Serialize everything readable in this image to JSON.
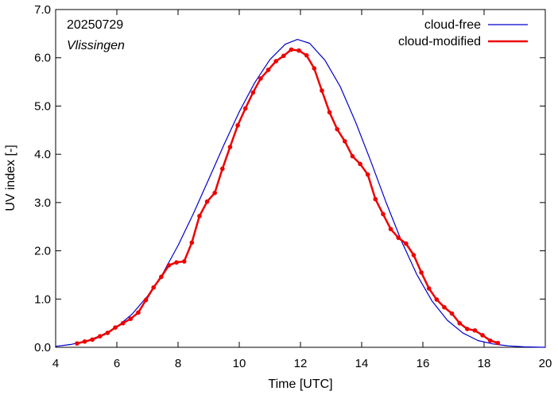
{
  "chart_data": {
    "type": "line",
    "annotations": {
      "date": "20250729",
      "station": "Vlissingen"
    },
    "xlabel": "Time  [UTC]",
    "ylabel": "UV index  [-]",
    "xlim": [
      4,
      20
    ],
    "ylim": [
      0,
      7
    ],
    "x_ticks": [
      4,
      6,
      8,
      10,
      12,
      14,
      16,
      18,
      20
    ],
    "x_tick_labels": [
      "4",
      "6",
      "8",
      "10",
      "12",
      "14",
      "16",
      "18",
      "20"
    ],
    "y_ticks": [
      0,
      1,
      2,
      3,
      4,
      5,
      6,
      7
    ],
    "y_tick_labels": [
      "0.0",
      "1.0",
      "2.0",
      "3.0",
      "4.0",
      "5.0",
      "6.0",
      "7.0"
    ],
    "legend_placement": "top-right",
    "grid": false,
    "series": [
      {
        "name": "cloud-free",
        "color": "#0000cc",
        "style": "line",
        "x": [
          4.0,
          4.5,
          5.0,
          5.5,
          6.0,
          6.5,
          7.0,
          7.5,
          8.0,
          8.5,
          9.0,
          9.5,
          10.0,
          10.5,
          11.0,
          11.5,
          11.9,
          12.3,
          12.8,
          13.3,
          13.8,
          14.3,
          14.8,
          15.3,
          15.8,
          16.3,
          16.8,
          17.3,
          17.8,
          18.3,
          18.8,
          19.3,
          20.0
        ],
        "y": [
          0.02,
          0.06,
          0.13,
          0.25,
          0.42,
          0.69,
          1.06,
          1.53,
          2.11,
          2.77,
          3.48,
          4.2,
          4.88,
          5.48,
          5.96,
          6.28,
          6.38,
          6.3,
          5.95,
          5.4,
          4.67,
          3.85,
          3.0,
          2.2,
          1.51,
          0.96,
          0.56,
          0.3,
          0.14,
          0.07,
          0.03,
          0.01,
          0.0
        ]
      },
      {
        "name": "cloud-modified",
        "color": "#ee0000",
        "style": "line-points",
        "x": [
          4.7,
          4.95,
          5.2,
          5.45,
          5.7,
          5.95,
          6.2,
          6.45,
          6.7,
          6.95,
          7.2,
          7.45,
          7.7,
          7.95,
          8.2,
          8.45,
          8.7,
          8.95,
          9.2,
          9.45,
          9.7,
          9.95,
          10.2,
          10.45,
          10.7,
          10.95,
          11.2,
          11.45,
          11.7,
          11.95,
          12.2,
          12.45,
          12.7,
          12.95,
          13.2,
          13.45,
          13.7,
          13.95,
          14.2,
          14.45,
          14.7,
          14.95,
          15.2,
          15.45,
          15.7,
          15.95,
          16.2,
          16.45,
          16.7,
          16.95,
          17.2,
          17.45,
          17.7,
          17.95,
          18.2,
          18.45
        ],
        "y": [
          0.08,
          0.12,
          0.16,
          0.23,
          0.3,
          0.41,
          0.5,
          0.59,
          0.72,
          0.98,
          1.24,
          1.46,
          1.7,
          1.76,
          1.78,
          2.17,
          2.72,
          3.02,
          3.2,
          3.7,
          4.15,
          4.6,
          4.95,
          5.28,
          5.57,
          5.75,
          5.93,
          6.04,
          6.17,
          6.15,
          6.05,
          5.78,
          5.32,
          4.87,
          4.52,
          4.27,
          3.96,
          3.8,
          3.58,
          3.07,
          2.76,
          2.45,
          2.27,
          2.15,
          1.91,
          1.55,
          1.22,
          0.99,
          0.83,
          0.7,
          0.5,
          0.38,
          0.35,
          0.25,
          0.14,
          0.09
        ]
      }
    ]
  }
}
